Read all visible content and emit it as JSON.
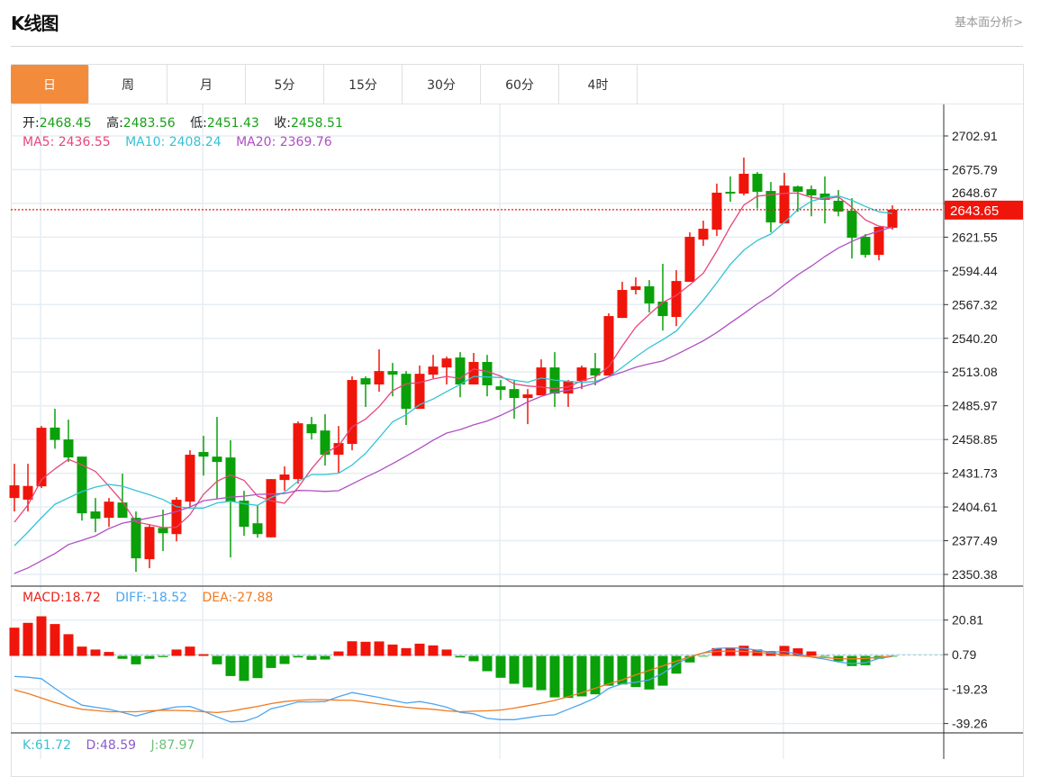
{
  "header": {
    "title": "K线图",
    "link": "基本面分析>"
  },
  "tabs": [
    {
      "label": "日",
      "active": true
    },
    {
      "label": "周"
    },
    {
      "label": "月"
    },
    {
      "label": "5分"
    },
    {
      "label": "15分"
    },
    {
      "label": "30分"
    },
    {
      "label": "60分"
    },
    {
      "label": "4时"
    }
  ],
  "ohlc_info": {
    "open_label": "开:",
    "open": "2468.45",
    "high_label": "高:",
    "high": "2483.56",
    "low_label": "低:",
    "low": "2451.43",
    "close_label": "收:",
    "close": "2458.51"
  },
  "ma_info": {
    "ma5_label": "MA5:",
    "ma5": "2436.55",
    "ma10_label": "MA10:",
    "ma10": "2408.24",
    "ma20_label": "MA20:",
    "ma20": "2369.76"
  },
  "macd_info": {
    "macd_label": "MACD:",
    "macd": "18.72",
    "diff_label": "DIFF:",
    "diff": "-18.52",
    "dea_label": "DEA:",
    "dea": "-27.88"
  },
  "kdj_info": {
    "k_label": "K:",
    "k": "61.72",
    "d_label": "D:",
    "d": "48.59",
    "j_label": "J:",
    "j": "87.97"
  },
  "colors": {
    "up": "#f0150a",
    "down": "#0aa00a",
    "accent": "#f28c3c",
    "ma5": "#e8457a",
    "ma10": "#35c3d6",
    "ma20": "#b04fc4",
    "macd": "#e8231a",
    "diff": "#4da6f0",
    "dea": "#f07a20",
    "k": "#3cc0d0",
    "d": "#8a5cc8",
    "j": "#6cc07a"
  },
  "chart_data": {
    "type": "candlestick",
    "price_axis": {
      "ticks": [
        "2702.91",
        "2675.79",
        "2648.67",
        "2621.55",
        "2594.44",
        "2567.32",
        "2540.20",
        "2513.08",
        "2485.97",
        "2458.85",
        "2431.73",
        "2404.61",
        "2377.49",
        "2350.38"
      ],
      "range": [
        2350.38,
        2702.91
      ],
      "last_price": "2643.65"
    },
    "candles": [
      [
        2411.8,
        2439.3,
        2401.0,
        2422.0
      ],
      [
        2410.5,
        2439.3,
        2401.0,
        2421.5
      ],
      [
        2421.2,
        2469.7,
        2419.8,
        2468.3
      ],
      [
        2468.45,
        2483.56,
        2451.43,
        2458.51
      ],
      [
        2458.9,
        2474.8,
        2440.8,
        2444.4
      ],
      [
        2445.1,
        2445.1,
        2393.7,
        2399.5
      ],
      [
        2401.0,
        2411.8,
        2384.3,
        2395.2
      ],
      [
        2395.9,
        2411.8,
        2388.6,
        2408.9
      ],
      [
        2408.2,
        2431.4,
        2395.9,
        2395.9
      ],
      [
        2395.9,
        2401.0,
        2352.5,
        2363.3
      ],
      [
        2362.6,
        2390.7,
        2355.4,
        2388.6
      ],
      [
        2387.8,
        2402.4,
        2369.1,
        2383.5
      ],
      [
        2382.8,
        2412.5,
        2377.0,
        2410.4
      ],
      [
        2408.9,
        2450.2,
        2404.6,
        2446.6
      ],
      [
        2448.8,
        2461.8,
        2429.9,
        2445.1
      ],
      [
        2445.1,
        2477.0,
        2411.1,
        2440.8
      ],
      [
        2444.4,
        2458.2,
        2364.0,
        2408.9
      ],
      [
        2409.7,
        2417.6,
        2381.4,
        2388.7
      ],
      [
        2391.5,
        2406.1,
        2379.9,
        2382.8
      ],
      [
        2380.2,
        2427.0,
        2380.2,
        2427.0
      ],
      [
        2426.3,
        2437.2,
        2417.6,
        2430.7
      ],
      [
        2427.0,
        2473.4,
        2423.4,
        2471.9
      ],
      [
        2471.2,
        2477.0,
        2458.9,
        2463.9
      ],
      [
        2466.1,
        2479.2,
        2437.9,
        2446.6
      ],
      [
        2446.6,
        2469.7,
        2432.1,
        2456.0
      ],
      [
        2455.3,
        2509.6,
        2450.2,
        2506.7
      ],
      [
        2508.1,
        2509.6,
        2485.0,
        2503.1
      ],
      [
        2503.1,
        2531.3,
        2497.3,
        2513.9
      ],
      [
        2513.9,
        2520.4,
        2493.6,
        2511.0
      ],
      [
        2511.7,
        2513.9,
        2470.5,
        2483.5
      ],
      [
        2483.5,
        2518.3,
        2483.5,
        2511.7
      ],
      [
        2511.0,
        2526.9,
        2508.1,
        2517.5
      ],
      [
        2516.8,
        2525.5,
        2503.1,
        2524.0
      ],
      [
        2524.8,
        2529.1,
        2492.9,
        2503.1
      ],
      [
        2503.1,
        2528.4,
        2503.1,
        2521.2
      ],
      [
        2521.2,
        2526.9,
        2493.6,
        2502.4
      ],
      [
        2501.6,
        2506.7,
        2490.7,
        2498.7
      ],
      [
        2499.4,
        2506.0,
        2475.5,
        2492.2
      ],
      [
        2492.2,
        2499.4,
        2471.2,
        2495.1
      ],
      [
        2494.4,
        2523.3,
        2494.4,
        2516.8
      ],
      [
        2516.8,
        2529.1,
        2485.0,
        2495.8
      ],
      [
        2495.8,
        2506.7,
        2485.0,
        2505.9
      ],
      [
        2505.9,
        2518.3,
        2499.4,
        2516.8
      ],
      [
        2516.1,
        2528.4,
        2502.4,
        2510.3
      ],
      [
        2510.3,
        2560.3,
        2510.3,
        2558.1
      ],
      [
        2556.6,
        2585.6,
        2556.6,
        2579.1
      ],
      [
        2579.1,
        2589.2,
        2575.5,
        2582.0
      ],
      [
        2582.0,
        2587.0,
        2561.0,
        2568.2
      ],
      [
        2569.7,
        2600.1,
        2546.5,
        2558.1
      ],
      [
        2557.4,
        2595.0,
        2550.0,
        2586.3
      ],
      [
        2585.6,
        2625.4,
        2585.6,
        2621.8
      ],
      [
        2619.6,
        2634.8,
        2614.5,
        2628.3
      ],
      [
        2627.6,
        2664.6,
        2622.5,
        2657.3
      ],
      [
        2658.0,
        2670.3,
        2650.0,
        2656.6
      ],
      [
        2656.6,
        2685.5,
        2655.1,
        2672.5
      ],
      [
        2672.5,
        2673.9,
        2644.6,
        2658.0
      ],
      [
        2658.7,
        2665.9,
        2625.4,
        2633.4
      ],
      [
        2632.6,
        2673.2,
        2632.6,
        2663.0
      ],
      [
        2662.3,
        2663.0,
        2641.9,
        2658.0
      ],
      [
        2660.1,
        2663.0,
        2638.3,
        2655.1
      ],
      [
        2656.6,
        2670.3,
        2632.6,
        2651.5
      ],
      [
        2650.8,
        2659.4,
        2638.3,
        2642.1
      ],
      [
        2642.8,
        2652.9,
        2604.4,
        2621.1
      ],
      [
        2621.8,
        2624.0,
        2605.1,
        2607.3
      ],
      [
        2607.3,
        2629.8,
        2602.9,
        2629.8
      ],
      [
        2629.1,
        2647.1,
        2627.6,
        2643.65
      ]
    ],
    "ma_early": {
      "ma5": [
        2392.4,
        2406.2,
        2426.5,
        2435.2
      ],
      "ma10": [
        2373.5,
        2384.4,
        2396.0,
        2406.8,
        2411.9,
        2417.0,
        2420.6,
        2422.8,
        2421.3
      ],
      "ma20": [
        2351.2,
        2355.6,
        2361.4,
        2367.2,
        2374.4,
        2377.8,
        2381.4,
        2387.2,
        2391.6,
        2393.7,
        2395.9,
        2398.1,
        2401.0,
        2404.6,
        2409.7,
        2411.1,
        2412.5,
        2413.3,
        2414.7
      ]
    },
    "macd_axis": {
      "ticks": [
        "20.81",
        "0.79",
        "-19.23",
        "-39.26"
      ],
      "range": [
        -42,
        30
      ]
    },
    "macd": [
      16.4,
      19.2,
      23.0,
      18.5,
      12.6,
      5.4,
      3.7,
      2.3,
      -1.7,
      -4.9,
      -1.7,
      -0.7,
      3.7,
      5.4,
      1.0,
      -4.9,
      -11.7,
      -14.5,
      -12.9,
      -7.0,
      -4.7,
      -0.9,
      -2.3,
      -2.1,
      2.6,
      8.5,
      8.2,
      8.4,
      6.6,
      4.5,
      7.1,
      6.1,
      3.7,
      -0.9,
      -3.1,
      -8.9,
      -12.7,
      -16.2,
      -18.3,
      -19.9,
      -24.1,
      -24.4,
      -23.5,
      -22.3,
      -17.3,
      -16.6,
      -18.1,
      -19.5,
      -17.3,
      -10.3,
      -3.8,
      -0.2,
      4.5,
      4.9,
      5.9,
      3.7,
      2.8,
      5.8,
      4.4,
      2.6,
      -0.2,
      -3.1,
      -5.9,
      -5.4,
      -1.7,
      -0.3
    ],
    "diff": [
      -11.9,
      -12.4,
      -13.2,
      -18.8,
      -24.1,
      -28.6,
      -29.8,
      -31.0,
      -32.8,
      -34.9,
      -32.8,
      -31.0,
      -29.6,
      -29.3,
      -32.1,
      -35.4,
      -38.3,
      -38.0,
      -35.4,
      -30.7,
      -28.9,
      -26.7,
      -26.7,
      -26.5,
      -23.7,
      -21.3,
      -22.7,
      -24.1,
      -25.8,
      -27.4,
      -26.5,
      -27.9,
      -29.8,
      -32.8,
      -33.6,
      -36.3,
      -37.0,
      -37.0,
      -35.9,
      -34.7,
      -34.2,
      -31.0,
      -27.9,
      -24.4,
      -18.8,
      -16.2,
      -15.3,
      -13.9,
      -10.1,
      -4.9,
      -0.5,
      1.7,
      4.4,
      4.7,
      4.4,
      3.3,
      2.1,
      2.6,
      1.0,
      -0.7,
      -1.9,
      -3.5,
      -4.5,
      -4.0,
      -1.4,
      -0.3
    ],
    "dea": [
      -19.7,
      -21.8,
      -24.4,
      -27.0,
      -29.3,
      -31.0,
      -31.7,
      -32.4,
      -32.4,
      -32.4,
      -31.9,
      -31.5,
      -31.7,
      -31.9,
      -32.4,
      -32.9,
      -32.1,
      -30.7,
      -29.3,
      -27.7,
      -26.5,
      -25.8,
      -25.4,
      -25.4,
      -25.7,
      -25.8,
      -26.8,
      -27.9,
      -28.9,
      -29.8,
      -30.5,
      -31.0,
      -31.9,
      -32.4,
      -32.1,
      -31.9,
      -31.4,
      -30.3,
      -28.9,
      -27.5,
      -25.8,
      -23.7,
      -21.4,
      -18.8,
      -16.2,
      -13.9,
      -11.0,
      -8.4,
      -5.8,
      -3.1,
      -0.5,
      1.7,
      2.6,
      2.8,
      2.6,
      2.1,
      1.4,
      0.7,
      0.0,
      -0.5,
      -1.0,
      -1.6,
      -1.7,
      -1.4,
      -0.9,
      0.0
    ]
  }
}
